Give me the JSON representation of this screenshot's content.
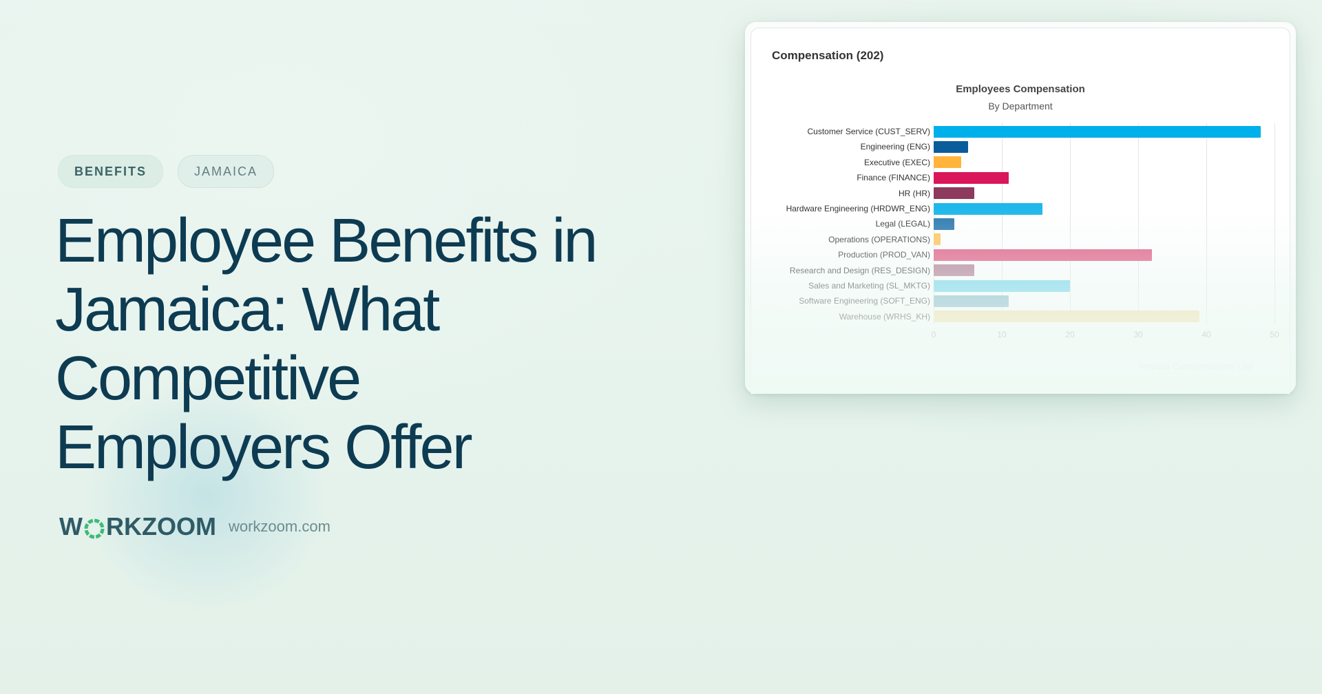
{
  "tags": [
    "BENEFITS",
    "JAMAICA"
  ],
  "headline": {
    "lines": [
      "Employee Benefits in",
      "Jamaica: What",
      "Competitive",
      "Employers Offer"
    ]
  },
  "brand": {
    "logo_text_before": "W",
    "logo_text_after": "RKZOOM",
    "logo_icon": "aperture-icon",
    "site": "workzoom.com"
  },
  "card": {
    "title": "Compensation (202)",
    "review_link": "Review Compensation List →"
  },
  "colors": {
    "headline": "#0d3b52",
    "accent_green": "#3fb97a"
  },
  "chart_data": {
    "type": "bar",
    "orientation": "horizontal",
    "title": "Employees Compensation",
    "subtitle": "By Department",
    "xlabel": "",
    "ylabel": "",
    "xlim": [
      0,
      50
    ],
    "xticks": [
      0,
      10,
      20,
      30,
      40,
      50
    ],
    "grid": true,
    "categories": [
      "Customer Service (CUST_SERV)",
      "Engineering (ENG)",
      "Executive (EXEC)",
      "Finance (FINANCE)",
      "HR (HR)",
      "Hardware Engineering (HRDWR_ENG)",
      "Legal (LEGAL)",
      "Operations (OPERATIONS)",
      "Production (PROD_VAN)",
      "Research and Design (RES_DESIGN)",
      "Sales and Marketing (SL_MKTG)",
      "Software Engineering (SOFT_ENG)",
      "Warehouse (WRHS_KH)"
    ],
    "values": [
      48,
      5,
      4,
      11,
      6,
      16,
      3,
      1,
      32,
      6,
      20,
      11,
      39
    ],
    "bar_colors": [
      "#00b0ea",
      "#0a5c9a",
      "#ffb53c",
      "#d9175a",
      "#8d3a5c",
      "#1fb8ea",
      "#2c7ab1",
      "#ffc55c",
      "#e05a86",
      "#b07a93",
      "#6cd2ee",
      "#7eb3cc",
      "#f5dea4"
    ]
  }
}
